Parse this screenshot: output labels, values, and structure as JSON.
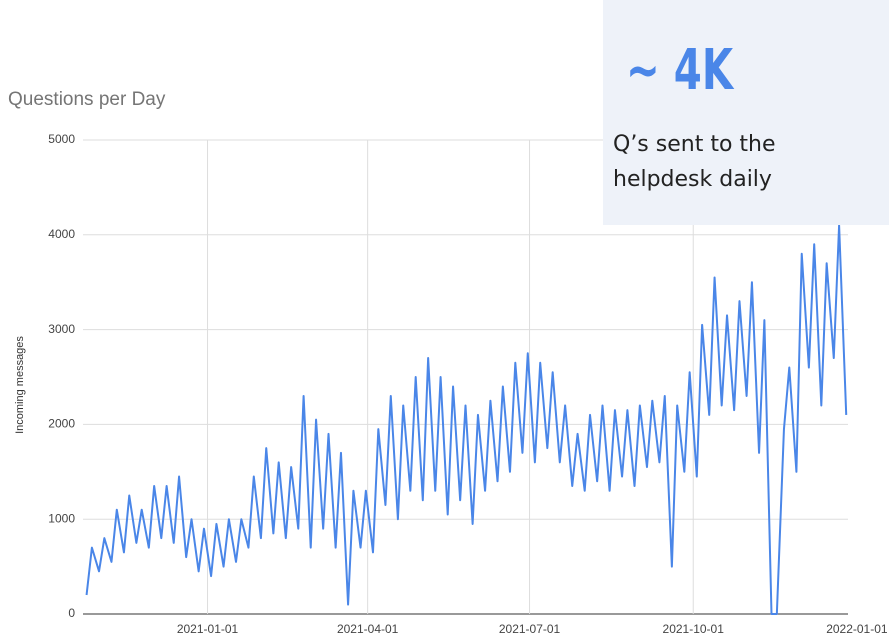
{
  "chart_data": {
    "type": "line",
    "title": "Questions per Day",
    "y_label": "Incoming messages",
    "color": "#4a86e8",
    "grid": true,
    "xlim": [
      "2020-10-23",
      "2021-12-27"
    ],
    "xticks": [
      "2021-01-01",
      "2021-04-01",
      "2021-07-01",
      "2021-10-01",
      "2022-01-01"
    ],
    "ylim": [
      0,
      5000
    ],
    "yticks": [
      0,
      1000,
      2000,
      3000,
      4000,
      5000
    ],
    "annotation": {
      "headline": "~ 4K",
      "lines": [
        "Q’s sent to the",
        "helpdesk daily"
      ]
    },
    "x": [
      "2020-10-25",
      "2020-10-28",
      "2020-11-01",
      "2020-11-04",
      "2020-11-08",
      "2020-11-11",
      "2020-11-15",
      "2020-11-18",
      "2020-11-22",
      "2020-11-25",
      "2020-11-29",
      "2020-12-02",
      "2020-12-06",
      "2020-12-09",
      "2020-12-13",
      "2020-12-16",
      "2020-12-20",
      "2020-12-23",
      "2020-12-27",
      "2020-12-30",
      "2021-01-03",
      "2021-01-06",
      "2021-01-10",
      "2021-01-13",
      "2021-01-17",
      "2021-01-20",
      "2021-01-24",
      "2021-01-27",
      "2021-01-31",
      "2021-02-03",
      "2021-02-07",
      "2021-02-10",
      "2021-02-14",
      "2021-02-17",
      "2021-02-21",
      "2021-02-24",
      "2021-02-28",
      "2021-03-03",
      "2021-03-07",
      "2021-03-10",
      "2021-03-14",
      "2021-03-17",
      "2021-03-21",
      "2021-03-24",
      "2021-03-28",
      "2021-03-31",
      "2021-04-04",
      "2021-04-07",
      "2021-04-11",
      "2021-04-14",
      "2021-04-18",
      "2021-04-21",
      "2021-04-25",
      "2021-04-28",
      "2021-05-02",
      "2021-05-05",
      "2021-05-09",
      "2021-05-12",
      "2021-05-16",
      "2021-05-19",
      "2021-05-23",
      "2021-05-26",
      "2021-05-30",
      "2021-06-02",
      "2021-06-06",
      "2021-06-09",
      "2021-06-13",
      "2021-06-16",
      "2021-06-20",
      "2021-06-23",
      "2021-06-27",
      "2021-06-30",
      "2021-07-04",
      "2021-07-07",
      "2021-07-11",
      "2021-07-14",
      "2021-07-18",
      "2021-07-21",
      "2021-07-25",
      "2021-07-28",
      "2021-08-01",
      "2021-08-04",
      "2021-08-08",
      "2021-08-11",
      "2021-08-15",
      "2021-08-18",
      "2021-08-22",
      "2021-08-25",
      "2021-08-29",
      "2021-09-01",
      "2021-09-05",
      "2021-09-08",
      "2021-09-12",
      "2021-09-15",
      "2021-09-19",
      "2021-09-22",
      "2021-09-26",
      "2021-09-29",
      "2021-10-03",
      "2021-10-06",
      "2021-10-10",
      "2021-10-13",
      "2021-10-17",
      "2021-10-20",
      "2021-10-24",
      "2021-10-27",
      "2021-10-31",
      "2021-11-03",
      "2021-11-07",
      "2021-11-10",
      "2021-11-14",
      "2021-11-17",
      "2021-11-21",
      "2021-11-24",
      "2021-11-28",
      "2021-12-01",
      "2021-12-05",
      "2021-12-08",
      "2021-12-12",
      "2021-12-15",
      "2021-12-19",
      "2021-12-22",
      "2021-12-26"
    ],
    "values": [
      200,
      700,
      450,
      800,
      550,
      1100,
      650,
      1250,
      750,
      1100,
      700,
      1350,
      800,
      1350,
      750,
      1450,
      600,
      1000,
      450,
      900,
      400,
      950,
      500,
      1000,
      550,
      1000,
      700,
      1450,
      800,
      1750,
      850,
      1600,
      800,
      1550,
      900,
      2300,
      700,
      2050,
      900,
      1900,
      700,
      1700,
      100,
      1300,
      700,
      1300,
      650,
      1950,
      1150,
      2300,
      1000,
      2200,
      1300,
      2500,
      1200,
      2700,
      1300,
      2500,
      1050,
      2400,
      1200,
      2200,
      950,
      2100,
      1300,
      2250,
      1400,
      2400,
      1500,
      2650,
      1700,
      2750,
      1600,
      2650,
      1750,
      2550,
      1600,
      2200,
      1350,
      1900,
      1300,
      2100,
      1400,
      2200,
      1300,
      2150,
      1450,
      2150,
      1350,
      2200,
      1550,
      2250,
      1600,
      2300,
      500,
      2200,
      1500,
      2550,
      1450,
      3050,
      2100,
      3550,
      2200,
      3150,
      2150,
      3300,
      2300,
      3500,
      1700,
      3100,
      0,
      0,
      1950,
      2600,
      1500,
      3800,
      2600,
      3900,
      2200,
      3700,
      2700,
      4100,
      2100
    ]
  }
}
